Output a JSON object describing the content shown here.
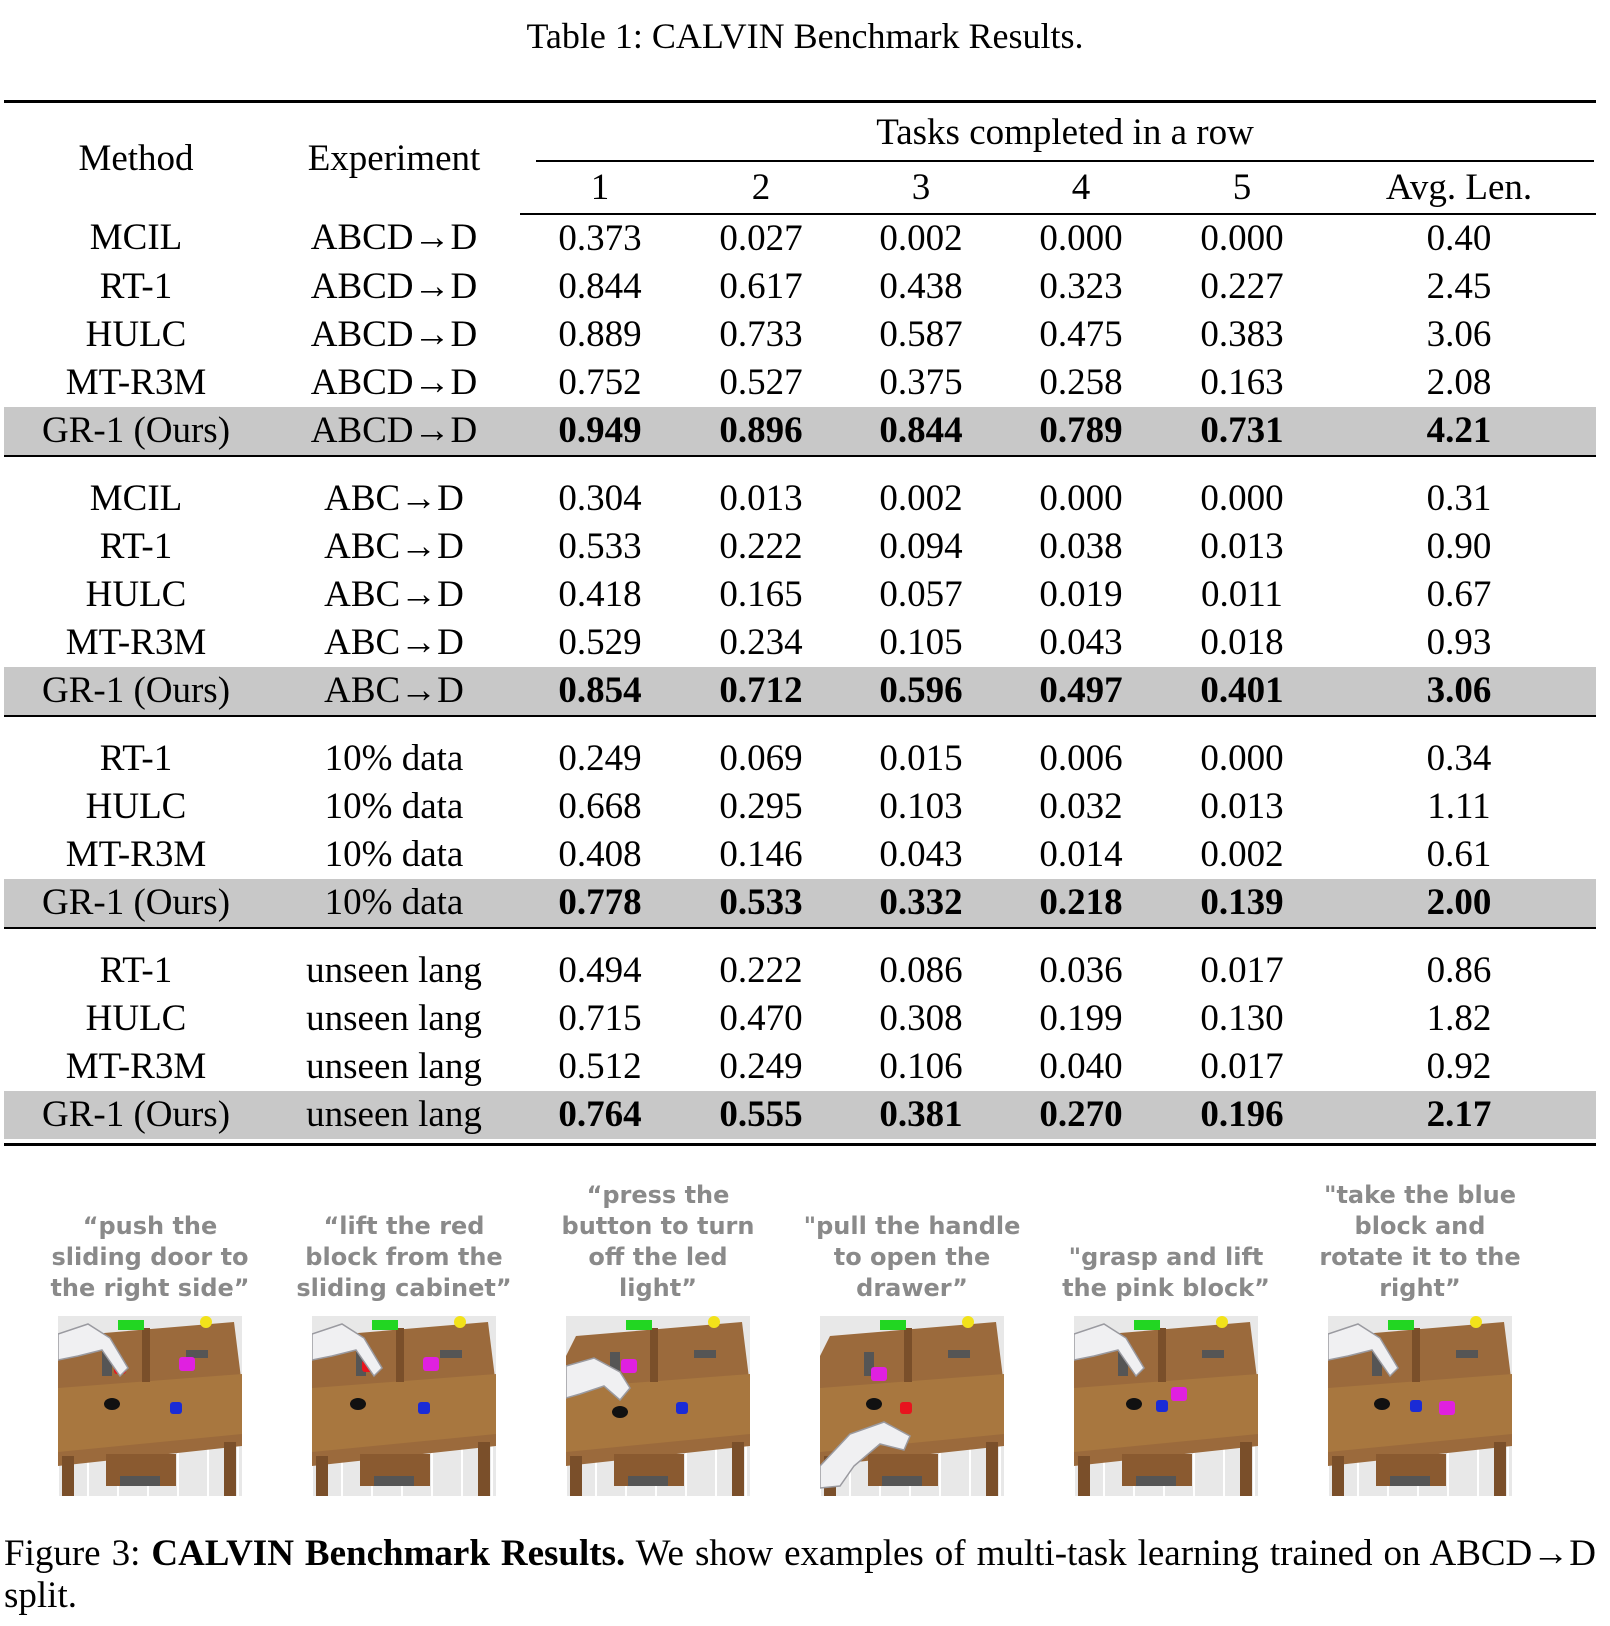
{
  "table_title": "Table 1: CALVIN Benchmark Results.",
  "headers": {
    "method": "Method",
    "experiment": "Experiment",
    "tasks_group": "Tasks completed in a row",
    "cols": [
      "1",
      "2",
      "3",
      "4",
      "5",
      "Avg. Len."
    ]
  },
  "groups": [
    {
      "rows": [
        {
          "method": "MCIL",
          "experiment": "ABCD→D",
          "values": [
            "0.373",
            "0.027",
            "0.002",
            "0.000",
            "0.000",
            "0.40"
          ]
        },
        {
          "method": "RT-1",
          "experiment": "ABCD→D",
          "values": [
            "0.844",
            "0.617",
            "0.438",
            "0.323",
            "0.227",
            "2.45"
          ]
        },
        {
          "method": "HULC",
          "experiment": "ABCD→D",
          "values": [
            "0.889",
            "0.733",
            "0.587",
            "0.475",
            "0.383",
            "3.06"
          ]
        },
        {
          "method": "MT-R3M",
          "experiment": "ABCD→D",
          "values": [
            "0.752",
            "0.527",
            "0.375",
            "0.258",
            "0.163",
            "2.08"
          ]
        },
        {
          "method": "GR-1 (Ours)",
          "experiment": "ABCD→D",
          "values": [
            "0.949",
            "0.896",
            "0.844",
            "0.789",
            "0.731",
            "4.21"
          ]
        }
      ]
    },
    {
      "rows": [
        {
          "method": "MCIL",
          "experiment": "ABC→D",
          "values": [
            "0.304",
            "0.013",
            "0.002",
            "0.000",
            "0.000",
            "0.31"
          ]
        },
        {
          "method": "RT-1",
          "experiment": "ABC→D",
          "values": [
            "0.533",
            "0.222",
            "0.094",
            "0.038",
            "0.013",
            "0.90"
          ]
        },
        {
          "method": "HULC",
          "experiment": "ABC→D",
          "values": [
            "0.418",
            "0.165",
            "0.057",
            "0.019",
            "0.011",
            "0.67"
          ]
        },
        {
          "method": "MT-R3M",
          "experiment": "ABC→D",
          "values": [
            "0.529",
            "0.234",
            "0.105",
            "0.043",
            "0.018",
            "0.93"
          ]
        },
        {
          "method": "GR-1 (Ours)",
          "experiment": "ABC→D",
          "values": [
            "0.854",
            "0.712",
            "0.596",
            "0.497",
            "0.401",
            "3.06"
          ]
        }
      ]
    },
    {
      "rows": [
        {
          "method": "RT-1",
          "experiment": "10% data",
          "values": [
            "0.249",
            "0.069",
            "0.015",
            "0.006",
            "0.000",
            "0.34"
          ]
        },
        {
          "method": "HULC",
          "experiment": "10% data",
          "values": [
            "0.668",
            "0.295",
            "0.103",
            "0.032",
            "0.013",
            "1.11"
          ]
        },
        {
          "method": "MT-R3M",
          "experiment": "10% data",
          "values": [
            "0.408",
            "0.146",
            "0.043",
            "0.014",
            "0.002",
            "0.61"
          ]
        },
        {
          "method": "GR-1 (Ours)",
          "experiment": "10% data",
          "values": [
            "0.778",
            "0.533",
            "0.332",
            "0.218",
            "0.139",
            "2.00"
          ]
        }
      ]
    },
    {
      "rows": [
        {
          "method": "RT-1",
          "experiment": "unseen lang",
          "values": [
            "0.494",
            "0.222",
            "0.086",
            "0.036",
            "0.017",
            "0.86"
          ]
        },
        {
          "method": "HULC",
          "experiment": "unseen lang",
          "values": [
            "0.715",
            "0.470",
            "0.308",
            "0.199",
            "0.130",
            "1.82"
          ]
        },
        {
          "method": "MT-R3M",
          "experiment": "unseen lang",
          "values": [
            "0.512",
            "0.249",
            "0.106",
            "0.040",
            "0.017",
            "0.92"
          ]
        },
        {
          "method": "GR-1 (Ours)",
          "experiment": "unseen lang",
          "values": [
            "0.764",
            "0.555",
            "0.381",
            "0.270",
            "0.196",
            "2.17"
          ]
        }
      ]
    }
  ],
  "figure_panels": [
    {
      "caption": "“push the sliding door to the right side”"
    },
    {
      "caption": "“lift the red block from the sliding cabinet”"
    },
    {
      "caption": "“press the button to turn off the led light”"
    },
    {
      "caption": "\"pull the handle to open the drawer”"
    },
    {
      "caption": "\"grasp and lift the pink block”"
    },
    {
      "caption": "\"take the blue block and rotate it to the right”"
    }
  ],
  "figure_caption": {
    "label": "Figure 3:",
    "title": "CALVIN Benchmark Results.",
    "text": "We show examples of multi-task learning trained on ABCD→D split."
  },
  "colors": {
    "highlight_row": "#c8c8c8",
    "caption_gray": "#8a8a8a",
    "desk_wood": "#9b6a3c",
    "red_block": "#e8141e",
    "blue_block": "#1a2bd6",
    "pink_block": "#e020e0",
    "green_button": "#22d622",
    "yellow_light": "#f2e21a"
  }
}
